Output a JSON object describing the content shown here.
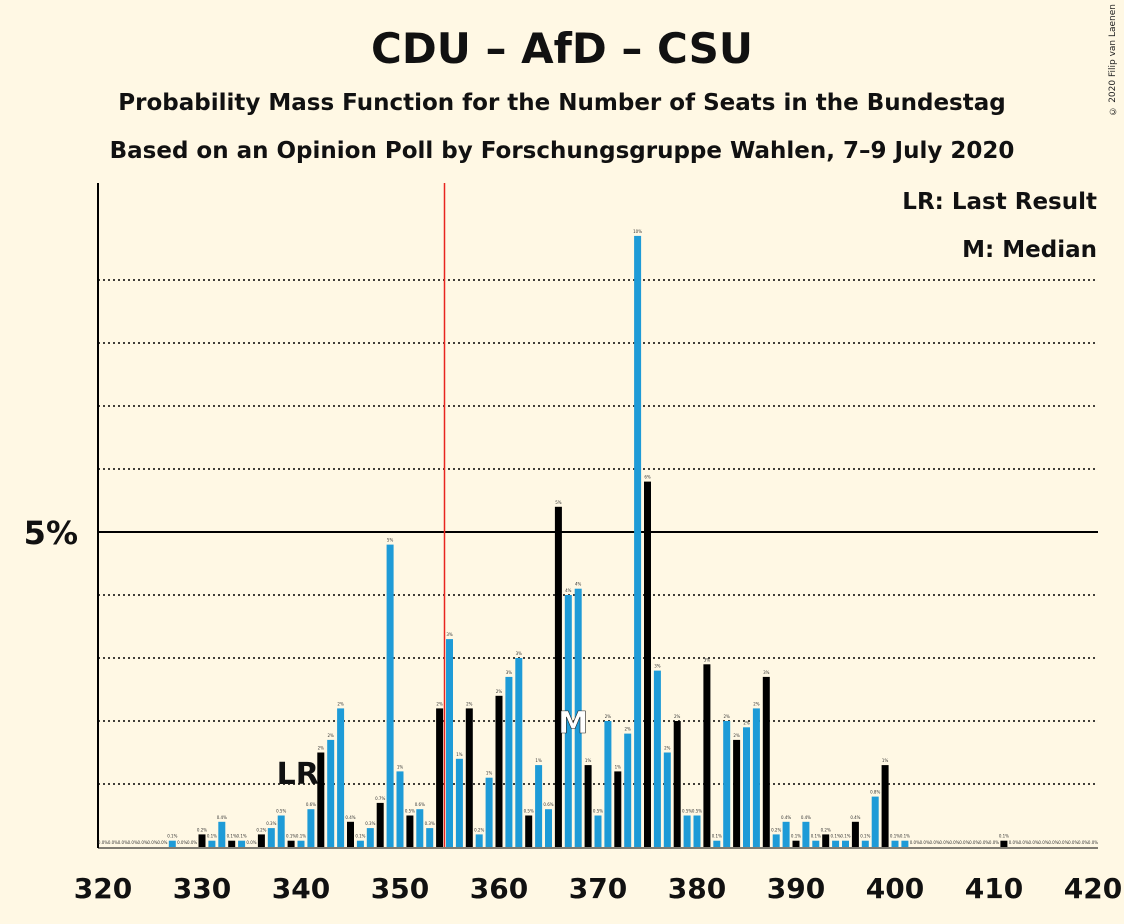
{
  "title": "CDU – AfD – CSU",
  "subtitle1": "Probability Mass Function for the Number of Seats in the Bundestag",
  "subtitle2": "Based on an Opinion Poll by Forschungsgruppe Wahlen, 7–9 July 2020",
  "copyright": "© 2020 Filip van Laenen",
  "legend": {
    "lr": "LR: Last Result",
    "median": "M: Median"
  },
  "markers": {
    "lr_label": "LR",
    "median_label": "M"
  },
  "colors": {
    "background": "#FFF8E4",
    "blue": "#1E9BD7",
    "black": "#000000",
    "majority_line": "#E8251F"
  },
  "chart_data": {
    "type": "bar",
    "ylabel_tick": "5%",
    "x_ticks": [
      "320",
      "330",
      "340",
      "350",
      "360",
      "370",
      "380",
      "390",
      "400",
      "410",
      "420"
    ],
    "xlim": [
      320,
      420
    ],
    "ylim": [
      0,
      10.5
    ],
    "majority_seat": 355,
    "last_result_seat": 342,
    "median_seat": 368,
    "grid": "dotted horizontal lines every 1%",
    "series": [
      {
        "seat": 320,
        "value": 0.0,
        "color": "black"
      },
      {
        "seat": 321,
        "value": 0.0,
        "color": "blue"
      },
      {
        "seat": 322,
        "value": 0.0,
        "color": "black"
      },
      {
        "seat": 323,
        "value": 0.0,
        "color": "blue"
      },
      {
        "seat": 324,
        "value": 0.0,
        "color": "black"
      },
      {
        "seat": 325,
        "value": 0.0,
        "color": "blue"
      },
      {
        "seat": 326,
        "value": 0.0,
        "color": "black"
      },
      {
        "seat": 327,
        "value": 0.1,
        "color": "blue"
      },
      {
        "seat": 328,
        "value": 0.0,
        "color": "black"
      },
      {
        "seat": 329,
        "value": 0.0,
        "color": "blue"
      },
      {
        "seat": 330,
        "value": 0.2,
        "color": "black"
      },
      {
        "seat": 331,
        "value": 0.1,
        "color": "blue"
      },
      {
        "seat": 332,
        "value": 0.4,
        "color": "blue"
      },
      {
        "seat": 333,
        "value": 0.1,
        "color": "black"
      },
      {
        "seat": 334,
        "value": 0.1,
        "color": "blue"
      },
      {
        "seat": 335,
        "value": 0.0,
        "color": "black"
      },
      {
        "seat": 336,
        "value": 0.2,
        "color": "black"
      },
      {
        "seat": 337,
        "value": 0.3,
        "color": "blue"
      },
      {
        "seat": 338,
        "value": 0.5,
        "color": "blue"
      },
      {
        "seat": 339,
        "value": 0.1,
        "color": "black"
      },
      {
        "seat": 340,
        "value": 0.1,
        "color": "blue"
      },
      {
        "seat": 341,
        "value": 0.6,
        "color": "blue"
      },
      {
        "seat": 342,
        "value": 1.5,
        "color": "black"
      },
      {
        "seat": 343,
        "value": 1.7,
        "color": "blue"
      },
      {
        "seat": 344,
        "value": 2.2,
        "color": "blue"
      },
      {
        "seat": 345,
        "value": 0.4,
        "color": "black"
      },
      {
        "seat": 346,
        "value": 0.1,
        "color": "blue"
      },
      {
        "seat": 347,
        "value": 0.3,
        "color": "blue"
      },
      {
        "seat": 348,
        "value": 0.7,
        "color": "black"
      },
      {
        "seat": 349,
        "value": 4.8,
        "color": "blue"
      },
      {
        "seat": 350,
        "value": 1.2,
        "color": "blue"
      },
      {
        "seat": 351,
        "value": 0.5,
        "color": "black"
      },
      {
        "seat": 352,
        "value": 0.6,
        "color": "blue"
      },
      {
        "seat": 353,
        "value": 0.3,
        "color": "blue"
      },
      {
        "seat": 354,
        "value": 2.2,
        "color": "black"
      },
      {
        "seat": 355,
        "value": 3.3,
        "color": "blue"
      },
      {
        "seat": 356,
        "value": 1.4,
        "color": "blue"
      },
      {
        "seat": 357,
        "value": 2.2,
        "color": "black"
      },
      {
        "seat": 358,
        "value": 0.2,
        "color": "blue"
      },
      {
        "seat": 359,
        "value": 1.1,
        "color": "blue"
      },
      {
        "seat": 360,
        "value": 2.4,
        "color": "black"
      },
      {
        "seat": 361,
        "value": 2.7,
        "color": "blue"
      },
      {
        "seat": 362,
        "value": 3.0,
        "color": "blue"
      },
      {
        "seat": 363,
        "value": 0.5,
        "color": "black"
      },
      {
        "seat": 364,
        "value": 1.3,
        "color": "blue"
      },
      {
        "seat": 365,
        "value": 0.6,
        "color": "blue"
      },
      {
        "seat": 366,
        "value": 5.4,
        "color": "black"
      },
      {
        "seat": 367,
        "value": 4.0,
        "color": "blue"
      },
      {
        "seat": 368,
        "value": 4.1,
        "color": "blue"
      },
      {
        "seat": 369,
        "value": 1.3,
        "color": "black"
      },
      {
        "seat": 370,
        "value": 0.5,
        "color": "blue"
      },
      {
        "seat": 371,
        "value": 2.0,
        "color": "blue"
      },
      {
        "seat": 372,
        "value": 1.2,
        "color": "black"
      },
      {
        "seat": 373,
        "value": 1.8,
        "color": "blue"
      },
      {
        "seat": 374,
        "value": 9.7,
        "color": "blue"
      },
      {
        "seat": 375,
        "value": 5.8,
        "color": "black"
      },
      {
        "seat": 376,
        "value": 2.8,
        "color": "blue"
      },
      {
        "seat": 377,
        "value": 1.5,
        "color": "blue"
      },
      {
        "seat": 378,
        "value": 2.0,
        "color": "black"
      },
      {
        "seat": 379,
        "value": 0.5,
        "color": "blue"
      },
      {
        "seat": 380,
        "value": 0.5,
        "color": "blue"
      },
      {
        "seat": 381,
        "value": 2.9,
        "color": "black"
      },
      {
        "seat": 382,
        "value": 0.1,
        "color": "blue"
      },
      {
        "seat": 383,
        "value": 2.0,
        "color": "blue"
      },
      {
        "seat": 384,
        "value": 1.7,
        "color": "black"
      },
      {
        "seat": 385,
        "value": 1.9,
        "color": "blue"
      },
      {
        "seat": 386,
        "value": 2.2,
        "color": "blue"
      },
      {
        "seat": 387,
        "value": 2.7,
        "color": "black"
      },
      {
        "seat": 388,
        "value": 0.2,
        "color": "blue"
      },
      {
        "seat": 389,
        "value": 0.4,
        "color": "blue"
      },
      {
        "seat": 390,
        "value": 0.1,
        "color": "black"
      },
      {
        "seat": 391,
        "value": 0.4,
        "color": "blue"
      },
      {
        "seat": 392,
        "value": 0.1,
        "color": "blue"
      },
      {
        "seat": 393,
        "value": 0.2,
        "color": "black"
      },
      {
        "seat": 394,
        "value": 0.1,
        "color": "blue"
      },
      {
        "seat": 395,
        "value": 0.1,
        "color": "blue"
      },
      {
        "seat": 396,
        "value": 0.4,
        "color": "black"
      },
      {
        "seat": 397,
        "value": 0.1,
        "color": "blue"
      },
      {
        "seat": 398,
        "value": 0.8,
        "color": "blue"
      },
      {
        "seat": 399,
        "value": 1.3,
        "color": "black"
      },
      {
        "seat": 400,
        "value": 0.1,
        "color": "blue"
      },
      {
        "seat": 401,
        "value": 0.1,
        "color": "blue"
      },
      {
        "seat": 402,
        "value": 0.0,
        "color": "black"
      },
      {
        "seat": 403,
        "value": 0.0,
        "color": "blue"
      },
      {
        "seat": 404,
        "value": 0.0,
        "color": "blue"
      },
      {
        "seat": 405,
        "value": 0.0,
        "color": "black"
      },
      {
        "seat": 406,
        "value": 0.0,
        "color": "blue"
      },
      {
        "seat": 407,
        "value": 0.0,
        "color": "blue"
      },
      {
        "seat": 408,
        "value": 0.0,
        "color": "black"
      },
      {
        "seat": 409,
        "value": 0.0,
        "color": "blue"
      },
      {
        "seat": 410,
        "value": 0.0,
        "color": "blue"
      },
      {
        "seat": 411,
        "value": 0.1,
        "color": "black"
      },
      {
        "seat": 412,
        "value": 0.0,
        "color": "blue"
      },
      {
        "seat": 413,
        "value": 0.0,
        "color": "blue"
      },
      {
        "seat": 414,
        "value": 0.0,
        "color": "black"
      },
      {
        "seat": 415,
        "value": 0.0,
        "color": "blue"
      },
      {
        "seat": 416,
        "value": 0.0,
        "color": "blue"
      },
      {
        "seat": 417,
        "value": 0.0,
        "color": "black"
      },
      {
        "seat": 418,
        "value": 0.0,
        "color": "blue"
      },
      {
        "seat": 419,
        "value": 0.0,
        "color": "blue"
      },
      {
        "seat": 420,
        "value": 0.0,
        "color": "black"
      }
    ]
  }
}
